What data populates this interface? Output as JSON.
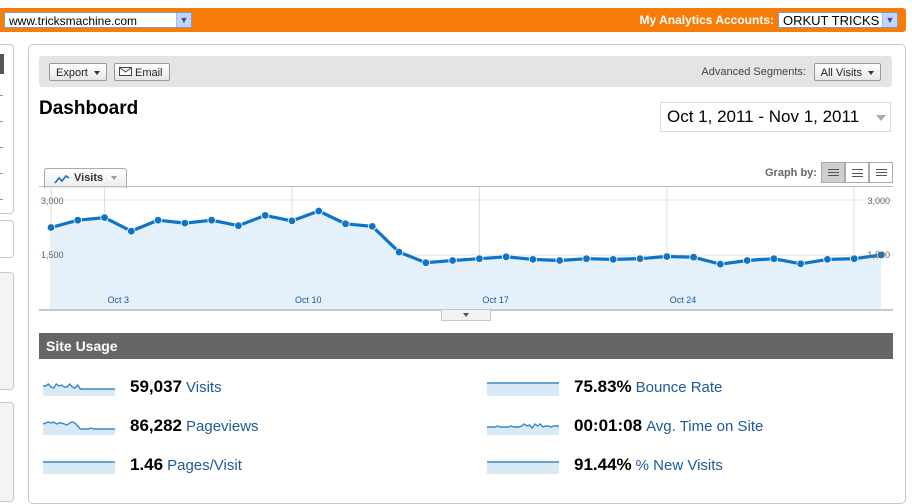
{
  "header": {
    "site_select": "www.tricksmachine.com",
    "accounts_label": "My Analytics Accounts:",
    "account_select": "ORKUT TRICKS"
  },
  "toolbar": {
    "export_label": "Export",
    "email_label": "Email",
    "segments_label": "Advanced Segments:",
    "segments_value": "All Visits"
  },
  "page": {
    "title": "Dashboard",
    "date_range": "Oct 1, 2011 - Nov 1, 2011"
  },
  "graph": {
    "tab_label": "Visits",
    "graph_by_label": "Graph by:"
  },
  "chart_data": {
    "type": "line",
    "series": [
      {
        "name": "Visits",
        "values": [
          2250,
          2450,
          2520,
          2150,
          2450,
          2370,
          2450,
          2300,
          2580,
          2430,
          2700,
          2350,
          2280,
          1580,
          1290,
          1350,
          1400,
          1450,
          1380,
          1350,
          1400,
          1380,
          1400,
          1460,
          1440,
          1250,
          1350,
          1400,
          1260,
          1380,
          1400,
          1500
        ]
      }
    ],
    "x_start_day": 1,
    "x_tick_labels": [
      "Oct 3",
      "Oct 10",
      "Oct 17",
      "Oct 24"
    ],
    "x_tick_days": [
      3,
      10,
      17,
      24
    ],
    "y_ticks": [
      1500,
      3000
    ],
    "y_tick_labels": [
      "1,500",
      "3,000"
    ],
    "ylim": [
      0,
      3000
    ],
    "color": "#0f74c6",
    "fill_color": "#e4f0fa",
    "grid": true
  },
  "usage": {
    "title": "Site Usage",
    "metrics": [
      {
        "value": "59,037",
        "label": "Visits",
        "spark": [
          8,
          8,
          6,
          9,
          10,
          6,
          8,
          7,
          9,
          9,
          6,
          9,
          10,
          7,
          11,
          11,
          11,
          11,
          11,
          11,
          11,
          11,
          11,
          11,
          11,
          11,
          11,
          11
        ]
      },
      {
        "value": "75.83%",
        "label": "Bounce Rate",
        "spark": [
          5,
          5,
          5,
          5,
          5,
          5,
          5,
          5,
          5,
          5,
          5,
          5,
          5,
          5,
          5,
          5,
          5,
          5,
          5,
          5,
          5,
          5,
          5,
          5,
          5,
          5,
          5,
          5
        ]
      },
      {
        "value": "86,282",
        "label": "Pageviews",
        "spark": [
          7,
          6,
          5,
          6,
          5,
          7,
          6,
          6,
          7,
          8,
          6,
          5,
          6,
          9,
          12,
          12,
          12,
          12,
          11,
          12,
          12,
          12,
          12,
          12,
          12,
          12,
          12,
          12
        ]
      },
      {
        "value": "00:01:08",
        "label": "Avg. Time on Site",
        "spark": [
          10,
          10,
          10,
          10,
          9,
          10,
          10,
          10,
          10,
          9,
          10,
          10,
          10,
          9,
          7,
          9,
          8,
          11,
          7,
          9,
          7,
          10,
          9,
          9,
          10,
          9,
          9,
          9
        ]
      },
      {
        "value": "1.46",
        "label": "Pages/Visit",
        "spark": [
          6,
          6,
          6,
          6,
          6,
          6,
          6,
          6,
          6,
          6,
          6,
          6,
          6,
          6,
          6,
          6,
          6,
          6,
          6,
          6,
          6,
          6,
          6,
          6,
          6,
          6,
          6,
          6
        ]
      },
      {
        "value": "91.44%",
        "label": "% New Visits",
        "spark": [
          6,
          6,
          6,
          6,
          6,
          6,
          6,
          6,
          6,
          6,
          6,
          6,
          6,
          6,
          6,
          6,
          6,
          6,
          6,
          6,
          6,
          6,
          6,
          6,
          6,
          6,
          6,
          6
        ]
      }
    ]
  }
}
